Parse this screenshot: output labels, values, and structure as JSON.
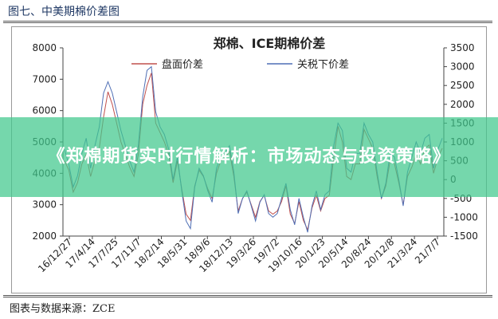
{
  "figure": {
    "caption": "图七、中美期棉价差图",
    "source": "图表与数据来源：ZCE"
  },
  "banner": {
    "headline": "《郑棉期货实时行情解析：市场动态与投资策略》"
  },
  "colors": {
    "spread_disk": "#c0504d",
    "spread_tariff": "#4f6fb5",
    "banner": "#40c88c"
  },
  "chart_data": {
    "type": "line",
    "title": "郑棉、ICE期棉价差",
    "legend_position": "top",
    "grid": false,
    "x_labels": [
      "16/12/27",
      "17/4/14",
      "17/7/25",
      "17/11/7",
      "18/2/14",
      "18/5/31",
      "18/9/6",
      "18/12/13",
      "19/3/26",
      "19/7/2",
      "19/10/16",
      "20/1/23",
      "20/5/14",
      "20/8/24",
      "20/12/8",
      "21/3/24",
      "21/7/7"
    ],
    "y_left": {
      "ticks": [
        2000,
        3000,
        4000,
        5000,
        6000,
        7000,
        8000
      ],
      "range": [
        2000,
        8000
      ]
    },
    "y_right": {
      "ticks": [
        -1500,
        -1000,
        -500,
        0,
        500,
        1000,
        1500,
        2000,
        2500,
        3000,
        3500
      ],
      "range": [
        -1500,
        3500
      ]
    },
    "series": [
      {
        "name": "盘面价差",
        "axis": "left",
        "values": [
          4400,
          4100,
          3400,
          3700,
          4300,
          4600,
          3900,
          4400,
          4800,
          5800,
          6600,
          6200,
          5600,
          5000,
          4600,
          4200,
          3900,
          4600,
          6200,
          6800,
          7200,
          5600,
          5300,
          5000,
          4600,
          3700,
          4400,
          3500,
          2700,
          2500,
          3600,
          4100,
          3900,
          3500,
          3200,
          4000,
          4400,
          4500,
          4700,
          3900,
          2800,
          3200,
          3400,
          3000,
          2600,
          3100,
          3300,
          2800,
          2700,
          2800,
          3100,
          3600,
          2700,
          2400,
          3100,
          2500,
          2200,
          2900,
          3300,
          2800,
          3200,
          3300,
          4500,
          5500,
          5000,
          3900,
          3800,
          4300,
          4300,
          5400,
          5100,
          4800,
          3900,
          3200,
          3600,
          4400,
          4300,
          3700,
          3000,
          3900,
          4200,
          4600,
          4300,
          4800,
          4900,
          4000,
          4500,
          4800
        ]
      },
      {
        "name": "关税下价差",
        "axis": "right",
        "values": [
          800,
          400,
          -200,
          100,
          700,
          1100,
          300,
          900,
          1400,
          2300,
          2600,
          2300,
          1800,
          1300,
          900,
          500,
          200,
          900,
          2200,
          2900,
          3000,
          1800,
          1400,
          1200,
          800,
          0,
          600,
          -300,
          -1100,
          -1300,
          -200,
          300,
          100,
          -300,
          -600,
          300,
          600,
          700,
          900,
          200,
          -900,
          -500,
          -300,
          -700,
          -1100,
          -600,
          -400,
          -900,
          -1000,
          -900,
          -500,
          -100,
          -800,
          -1200,
          -500,
          -1000,
          -1400,
          -700,
          -300,
          -800,
          -400,
          -300,
          900,
          1500,
          1300,
          300,
          200,
          700,
          700,
          1500,
          1200,
          1000,
          200,
          -500,
          -100,
          700,
          600,
          0,
          -700,
          200,
          600,
          1000,
          700,
          1100,
          1200,
          300,
          800,
          1100
        ]
      }
    ]
  }
}
